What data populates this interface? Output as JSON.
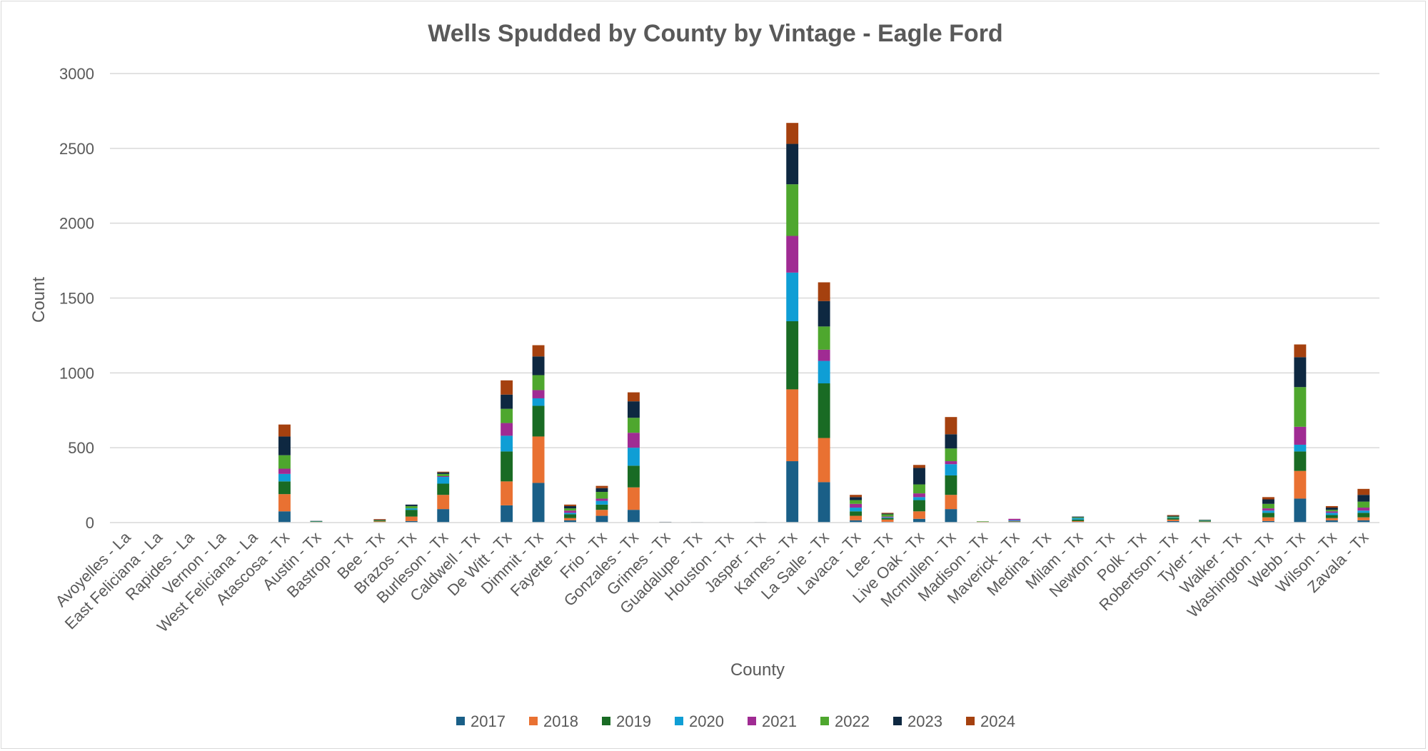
{
  "chart_data": {
    "type": "bar",
    "stacked": true,
    "title": "Wells Spudded by County by Vintage - Eagle Ford",
    "xlabel": "County",
    "ylabel": "Count",
    "ylim": [
      0,
      3000
    ],
    "yticks": [
      0,
      500,
      1000,
      1500,
      2000,
      2500,
      3000
    ],
    "grid": true,
    "legend_position": "bottom",
    "categories": [
      "Avoyelles - La",
      "East Feliciana - La",
      "Rapides - La",
      "Vernon - La",
      "West Feliciana - La",
      "Atascosa - Tx",
      "Austin - Tx",
      "Bastrop - Tx",
      "Bee - Tx",
      "Brazos - Tx",
      "Burleson - Tx",
      "Caldwell - Tx",
      "De Witt - Tx",
      "Dimmit - Tx",
      "Fayette - Tx",
      "Frio - Tx",
      "Gonzales - Tx",
      "Grimes - Tx",
      "Guadalupe - Tx",
      "Houston - Tx",
      "Jasper - Tx",
      "Karnes - Tx",
      "La Salle - Tx",
      "Lavaca - Tx",
      "Lee - Tx",
      "Live Oak - Tx",
      "Mcmullen - Tx",
      "Madison - Tx",
      "Maverick - Tx",
      "Medina - Tx",
      "Milam - Tx",
      "Newton - Tx",
      "Polk - Tx",
      "Robertson - Tx",
      "Tyler - Tx",
      "Walker - Tx",
      "Washington - Tx",
      "Webb - Tx",
      "Wilson - Tx",
      "Zavala - Tx"
    ],
    "series": [
      {
        "name": "2017",
        "color": "#1a5f87",
        "values": [
          0,
          0,
          0,
          0,
          0,
          75,
          2,
          0,
          3,
          10,
          90,
          0,
          115,
          265,
          15,
          45,
          85,
          0,
          0,
          0,
          0,
          410,
          270,
          15,
          5,
          25,
          90,
          2,
          5,
          0,
          5,
          0,
          0,
          10,
          3,
          0,
          10,
          160,
          15,
          15
        ]
      },
      {
        "name": "2018",
        "color": "#e97132",
        "values": [
          0,
          0,
          0,
          0,
          0,
          115,
          2,
          0,
          5,
          30,
          95,
          0,
          160,
          310,
          15,
          40,
          150,
          0,
          0,
          0,
          0,
          480,
          295,
          30,
          15,
          50,
          95,
          3,
          3,
          0,
          5,
          0,
          0,
          10,
          3,
          0,
          25,
          185,
          15,
          20
        ]
      },
      {
        "name": "2019",
        "color": "#196b24",
        "values": [
          0,
          0,
          0,
          0,
          0,
          85,
          3,
          0,
          4,
          45,
          75,
          0,
          200,
          205,
          25,
          35,
          145,
          0,
          0,
          0,
          0,
          455,
          365,
          30,
          10,
          75,
          130,
          2,
          2,
          0,
          10,
          0,
          0,
          10,
          5,
          0,
          30,
          130,
          20,
          30
        ]
      },
      {
        "name": "2020",
        "color": "#0f9ed5",
        "values": [
          0,
          0,
          0,
          0,
          0,
          50,
          1,
          0,
          0,
          10,
          45,
          0,
          105,
          50,
          10,
          25,
          120,
          2,
          1,
          0,
          1,
          325,
          150,
          25,
          5,
          20,
          75,
          0,
          5,
          0,
          10,
          0,
          0,
          5,
          2,
          1,
          15,
          45,
          15,
          15
        ]
      },
      {
        "name": "2021",
        "color": "#a02b93",
        "values": [
          0,
          0,
          0,
          0,
          0,
          35,
          0,
          0,
          0,
          0,
          5,
          0,
          85,
          55,
          15,
          15,
          100,
          0,
          0,
          0,
          0,
          245,
          75,
          25,
          5,
          25,
          20,
          0,
          10,
          0,
          0,
          0,
          0,
          0,
          0,
          0,
          15,
          120,
          10,
          20
        ]
      },
      {
        "name": "2022",
        "color": "#4ea72e",
        "values": [
          0,
          0,
          0,
          0,
          0,
          90,
          1,
          0,
          3,
          15,
          15,
          0,
          95,
          100,
          15,
          45,
          100,
          2,
          1,
          0,
          1,
          345,
          155,
          25,
          15,
          60,
          85,
          1,
          0,
          0,
          5,
          0,
          0,
          5,
          3,
          1,
          30,
          265,
          10,
          40
        ]
      },
      {
        "name": "2023",
        "color": "#0e2841",
        "values": [
          0,
          0,
          0,
          0,
          0,
          125,
          2,
          0,
          3,
          10,
          10,
          0,
          95,
          125,
          15,
          25,
          110,
          1,
          1,
          0,
          1,
          270,
          170,
          20,
          5,
          110,
          95,
          0,
          0,
          0,
          5,
          0,
          0,
          5,
          3,
          0,
          30,
          200,
          15,
          45
        ]
      },
      {
        "name": "2024",
        "color": "#a5410f",
        "values": [
          0,
          0,
          0,
          0,
          0,
          80,
          0,
          0,
          5,
          0,
          5,
          0,
          95,
          75,
          10,
          15,
          60,
          0,
          0,
          0,
          0,
          140,
          125,
          15,
          5,
          20,
          115,
          0,
          0,
          0,
          0,
          0,
          0,
          5,
          0,
          0,
          15,
          85,
          10,
          40
        ]
      }
    ]
  }
}
